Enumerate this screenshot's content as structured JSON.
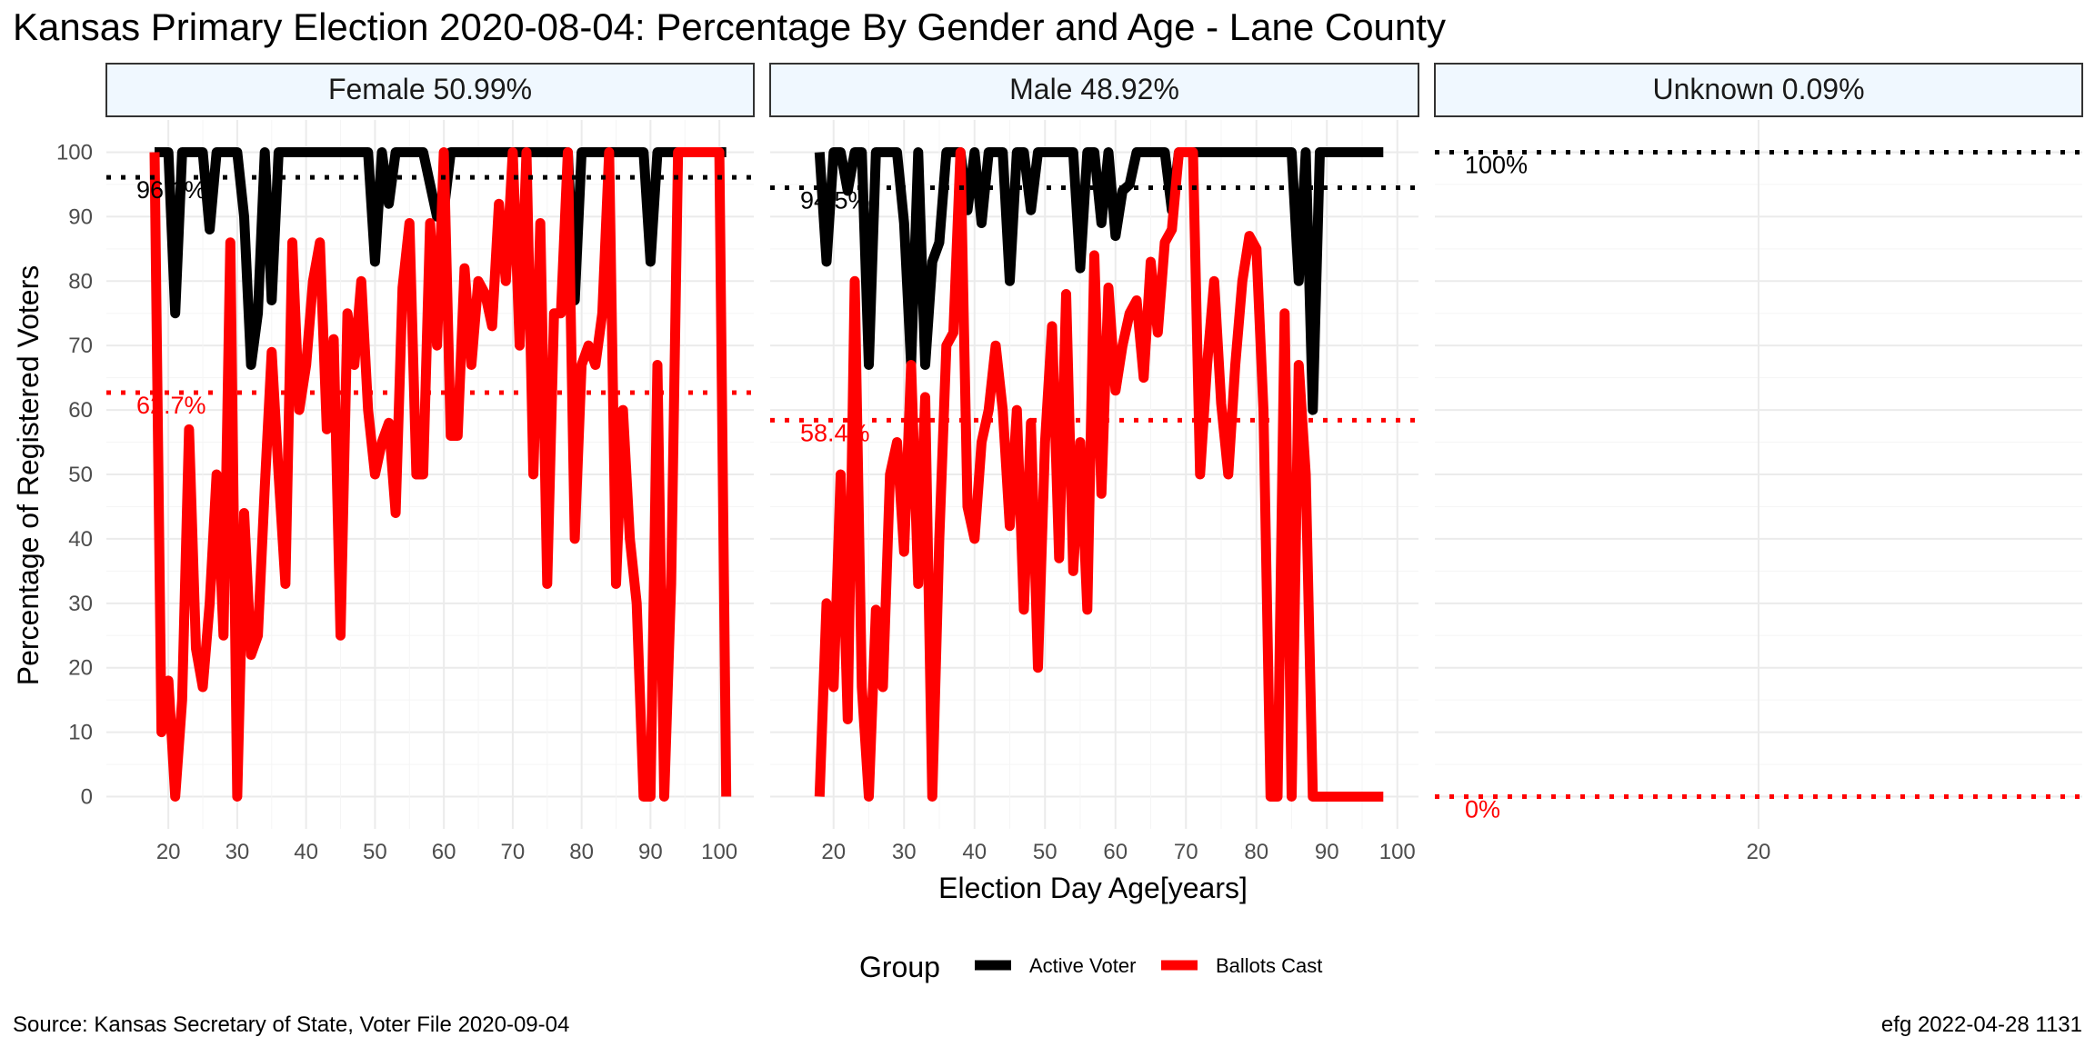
{
  "chart_data": {
    "type": "line",
    "title": "Kansas Primary Election 2020-08-04:  Percentage By Gender and Age - Lane County",
    "xlabel": "Election Day Age[years]",
    "ylabel": "Percentage of Registered Voters",
    "ylim": [
      -5,
      105
    ],
    "yticks": [
      "0",
      "10",
      "20",
      "30",
      "40",
      "50",
      "60",
      "70",
      "80",
      "90",
      "100"
    ],
    "grid": true,
    "legend": {
      "placement": "bottom",
      "title": "Group",
      "entries": [
        {
          "label": "Active Voter",
          "color": "#000000"
        },
        {
          "label": "Ballots Cast",
          "color": "#ff0000"
        }
      ]
    },
    "source": "Source:  Kansas Secretary of State, Voter File  2020-09-04",
    "credit": "efg 2022-04-28 1131",
    "panels": [
      {
        "strip": "Female 50.99%",
        "xlim": [
          11,
          105
        ],
        "xticks": [
          "20",
          "30",
          "40",
          "50",
          "60",
          "70",
          "80",
          "90",
          "100"
        ],
        "series": [
          {
            "name": "Active Voter",
            "color": "#000000",
            "x": [
              18,
              19,
              20,
              21,
              22,
              23,
              24,
              25,
              26,
              27,
              28,
              29,
              30,
              31,
              32,
              33,
              34,
              35,
              36,
              37,
              38,
              39,
              40,
              41,
              42,
              43,
              44,
              45,
              46,
              47,
              48,
              49,
              50,
              51,
              52,
              53,
              54,
              55,
              56,
              57,
              58,
              59,
              60,
              61,
              62,
              63,
              64,
              65,
              66,
              67,
              68,
              69,
              70,
              71,
              72,
              73,
              74,
              75,
              76,
              77,
              78,
              79,
              80,
              81,
              82,
              83,
              84,
              85,
              86,
              87,
              88,
              89,
              90,
              91,
              92,
              93,
              94,
              95,
              96,
              97,
              98,
              99,
              100,
              101
            ],
            "y": [
              100,
              100,
              100,
              75,
              100,
              100,
              100,
              100,
              88,
              100,
              100,
              100,
              100,
              90,
              67,
              75,
              100,
              77,
              100,
              100,
              100,
              100,
              100,
              100,
              100,
              100,
              100,
              100,
              100,
              100,
              100,
              100,
              83,
              100,
              92,
              100,
              100,
              100,
              100,
              100,
              95,
              90,
              91,
              100,
              100,
              100,
              100,
              100,
              100,
              100,
              100,
              100,
              100,
              100,
              100,
              100,
              100,
              100,
              100,
              100,
              100,
              77,
              100,
              100,
              100,
              100,
              100,
              100,
              100,
              100,
              100,
              100,
              83,
              100,
              100,
              100,
              100,
              100,
              100,
              100,
              100,
              100,
              100,
              100
            ]
          },
          {
            "name": "Ballots Cast",
            "color": "#ff0000",
            "x": [
              18,
              19,
              20,
              21,
              22,
              23,
              24,
              25,
              26,
              27,
              28,
              29,
              30,
              31,
              32,
              33,
              34,
              35,
              36,
              37,
              38,
              39,
              40,
              41,
              42,
              43,
              44,
              45,
              46,
              47,
              48,
              49,
              50,
              51,
              52,
              53,
              54,
              55,
              56,
              57,
              58,
              59,
              60,
              61,
              62,
              63,
              64,
              65,
              66,
              67,
              68,
              69,
              70,
              71,
              72,
              73,
              74,
              75,
              76,
              77,
              78,
              79,
              80,
              81,
              82,
              83,
              84,
              85,
              86,
              87,
              88,
              89,
              90,
              91,
              92,
              93,
              94,
              95,
              96,
              97,
              98,
              99,
              100,
              101
            ],
            "y": [
              100,
              10,
              18,
              0,
              15,
              57,
              23,
              17,
              30,
              50,
              25,
              86,
              0,
              44,
              22,
              25,
              48,
              69,
              50,
              33,
              86,
              60,
              67,
              80,
              86,
              57,
              71,
              25,
              75,
              67,
              80,
              60,
              50,
              55,
              58,
              44,
              79,
              89,
              50,
              50,
              89,
              70,
              100,
              56,
              56,
              82,
              67,
              80,
              78,
              73,
              92,
              80,
              100,
              70,
              100,
              50,
              89,
              33,
              75,
              75,
              100,
              40,
              67,
              70,
              67,
              75,
              100,
              33,
              60,
              40,
              30,
              0,
              0,
              67,
              0,
              33,
              100,
              100,
              100,
              100,
              100,
              100,
              100,
              0
            ]
          }
        ],
        "ref_lines": [
          {
            "group": "Active Voter",
            "value": 96.1,
            "label": "96.1%"
          },
          {
            "group": "Ballots Cast",
            "value": 62.7,
            "label": "62.7%"
          }
        ]
      },
      {
        "strip": "Male 48.92%",
        "xlim": [
          11,
          103
        ],
        "xticks": [
          "20",
          "30",
          "40",
          "50",
          "60",
          "70",
          "80",
          "90",
          "100"
        ],
        "series": [
          {
            "name": "Active Voter",
            "color": "#000000",
            "x": [
              18,
              19,
              20,
              21,
              22,
              23,
              24,
              25,
              26,
              27,
              28,
              29,
              30,
              31,
              32,
              33,
              34,
              35,
              36,
              37,
              38,
              39,
              40,
              41,
              42,
              43,
              44,
              45,
              46,
              47,
              48,
              49,
              50,
              51,
              52,
              53,
              54,
              55,
              56,
              57,
              58,
              59,
              60,
              61,
              62,
              63,
              64,
              65,
              66,
              67,
              68,
              69,
              70,
              71,
              72,
              73,
              74,
              75,
              76,
              77,
              78,
              79,
              80,
              81,
              82,
              83,
              84,
              85,
              86,
              87,
              88,
              89,
              90,
              91,
              92,
              93,
              94,
              95,
              96,
              97,
              98
            ],
            "y": [
              100,
              83,
              100,
              100,
              94,
              100,
              100,
              67,
              100,
              100,
              100,
              100,
              89,
              67,
              100,
              67,
              83,
              86,
              100,
              100,
              100,
              91,
              100,
              89,
              100,
              100,
              100,
              80,
              100,
              100,
              91,
              100,
              100,
              100,
              100,
              100,
              100,
              82,
              100,
              100,
              89,
              100,
              87,
              94,
              95,
              100,
              100,
              100,
              100,
              100,
              91,
              100,
              100,
              100,
              100,
              100,
              100,
              100,
              100,
              100,
              100,
              100,
              100,
              100,
              100,
              100,
              100,
              100,
              80,
              100,
              60,
              100,
              100,
              100,
              100,
              100,
              100,
              100,
              100,
              100,
              100
            ]
          },
          {
            "name": "Ballots Cast",
            "color": "#ff0000",
            "x": [
              18,
              19,
              20,
              21,
              22,
              23,
              24,
              25,
              26,
              27,
              28,
              29,
              30,
              31,
              32,
              33,
              34,
              35,
              36,
              37,
              38,
              39,
              40,
              41,
              42,
              43,
              44,
              45,
              46,
              47,
              48,
              49,
              50,
              51,
              52,
              53,
              54,
              55,
              56,
              57,
              58,
              59,
              60,
              61,
              62,
              63,
              64,
              65,
              66,
              67,
              68,
              69,
              70,
              71,
              72,
              73,
              74,
              75,
              76,
              77,
              78,
              79,
              80,
              81,
              82,
              83,
              84,
              85,
              86,
              87,
              88,
              89,
              90,
              91,
              92,
              93,
              94,
              95,
              96,
              97,
              98
            ],
            "y": [
              0,
              30,
              17,
              50,
              12,
              80,
              17,
              0,
              29,
              17,
              50,
              55,
              38,
              67,
              33,
              62,
              0,
              40,
              70,
              72,
              100,
              45,
              40,
              55,
              60,
              70,
              60,
              42,
              60,
              29,
              58,
              20,
              55,
              73,
              37,
              78,
              35,
              55,
              29,
              84,
              47,
              79,
              63,
              70,
              75,
              77,
              65,
              83,
              72,
              86,
              88,
              100,
              100,
              100,
              50,
              67,
              80,
              61,
              50,
              67,
              80,
              87,
              85,
              60,
              0,
              0,
              75,
              0,
              67,
              50,
              0,
              0,
              0,
              0,
              0,
              0,
              0,
              0,
              0,
              0,
              0
            ]
          }
        ],
        "ref_lines": [
          {
            "group": "Active Voter",
            "value": 94.5,
            "label": "94.5%"
          },
          {
            "group": "Ballots Cast",
            "value": 58.4,
            "label": "58.4%"
          }
        ]
      },
      {
        "strip": "Unknown 0.09%",
        "xlim": [
          18.6,
          21.4
        ],
        "xticks": [
          "20"
        ],
        "series": [],
        "ref_lines": [
          {
            "group": "Active Voter",
            "value": 100,
            "label": "100%"
          },
          {
            "group": "Ballots Cast",
            "value": 0,
            "label": "0%"
          }
        ]
      }
    ]
  }
}
